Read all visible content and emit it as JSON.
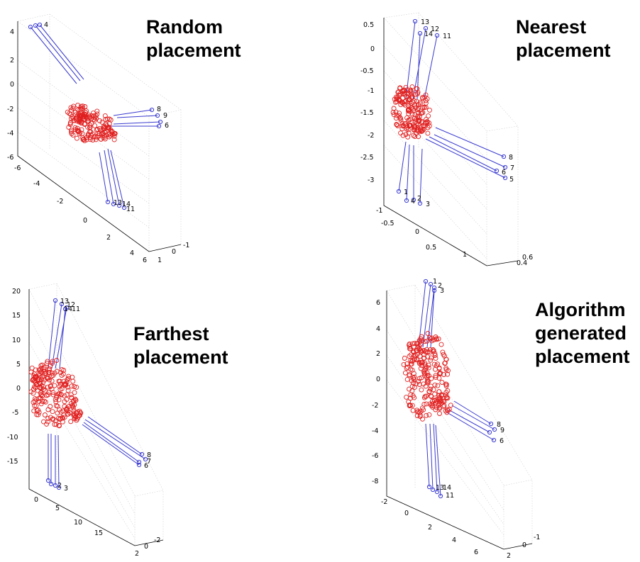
{
  "figure": {
    "panels": [
      {
        "title": [
          "Random",
          "placement"
        ],
        "yticks": [
          "4",
          "2",
          "0",
          "-2",
          "-4",
          "-6"
        ],
        "xticks": [
          "-6",
          "-4",
          "-2",
          "0",
          "2",
          "4",
          "6"
        ],
        "zticks": [
          "1",
          "0",
          "-1"
        ],
        "node_labels": [
          "4",
          "8",
          "9",
          "6",
          "13",
          "14",
          "11"
        ]
      },
      {
        "title": [
          "Nearest",
          "placement"
        ],
        "yticks": [
          "0.5",
          "0",
          "-0.5",
          "-1",
          "-1.5",
          "-2",
          "-2.5",
          "-3"
        ],
        "xticks": [
          "-1",
          "-0.5",
          "0",
          "0.5",
          "1"
        ],
        "zticks": [
          "0.6",
          "0.4"
        ],
        "node_labels": [
          "13",
          "12",
          "14",
          "11",
          "8",
          "7",
          "6",
          "5",
          "1",
          "4",
          "2",
          "3"
        ]
      },
      {
        "title": [
          "Farthest",
          "placement"
        ],
        "yticks": [
          "20",
          "15",
          "10",
          "5",
          "0",
          "-5",
          "-10",
          "-15"
        ],
        "xticks": [
          "0",
          "5",
          "10",
          "15"
        ],
        "zticks": [
          "2",
          "0",
          "-2"
        ],
        "node_labels": [
          "13",
          "12",
          "14",
          "11",
          "8",
          "7",
          "6",
          "2",
          "3"
        ]
      },
      {
        "title": [
          "Algorithm",
          "generated",
          "placement"
        ],
        "yticks": [
          "6",
          "4",
          "2",
          "0",
          "-2",
          "-4",
          "-6",
          "-8"
        ],
        "xticks": [
          "-2",
          "0",
          "2",
          "4",
          "6"
        ],
        "zticks": [
          "2",
          "0",
          "-1"
        ],
        "node_labels": [
          "1",
          "2",
          "3",
          "8",
          "9",
          "6",
          "13",
          "14",
          "11"
        ]
      }
    ]
  },
  "chart_data": [
    {
      "type": "scatter",
      "title": "Random placement",
      "ylim": [
        -6,
        4
      ],
      "xlim": [
        -6,
        6
      ],
      "zlim": [
        -1,
        1
      ],
      "series": [
        {
          "marker": "o",
          "color": "#e02020",
          "description_count": 200
        },
        {
          "marker": "o",
          "color": "#3a3ad0",
          "labels": [
            "4",
            "8",
            "9",
            "6",
            "13",
            "14",
            "11"
          ]
        }
      ]
    },
    {
      "type": "scatter",
      "title": "Nearest placement",
      "ylim": [
        -3,
        0.5
      ],
      "xlim": [
        -1,
        1
      ],
      "zlim": [
        0.4,
        0.6
      ],
      "series": [
        {
          "marker": "o",
          "color": "#e02020"
        },
        {
          "marker": "o",
          "color": "#3a3ad0",
          "labels": [
            "13",
            "12",
            "14",
            "11",
            "8",
            "7",
            "6",
            "5",
            "1",
            "4",
            "2",
            "3"
          ]
        }
      ]
    },
    {
      "type": "scatter",
      "title": "Farthest placement",
      "ylim": [
        -15,
        20
      ],
      "xlim": [
        0,
        15
      ],
      "zlim": [
        -2,
        2
      ],
      "series": [
        {
          "marker": "o",
          "color": "#e02020"
        },
        {
          "marker": "o",
          "color": "#3a3ad0",
          "labels": [
            "13",
            "12",
            "14",
            "11",
            "8",
            "7",
            "6",
            "2",
            "3"
          ]
        }
      ]
    },
    {
      "type": "scatter",
      "title": "Algorithm generated placement",
      "ylim": [
        -8,
        6
      ],
      "xlim": [
        -2,
        6
      ],
      "zlim": [
        -1,
        2
      ],
      "series": [
        {
          "marker": "o",
          "color": "#e02020"
        },
        {
          "marker": "o",
          "color": "#3a3ad0",
          "labels": [
            "1",
            "2",
            "3",
            "8",
            "9",
            "6",
            "13",
            "14",
            "11"
          ]
        }
      ]
    }
  ],
  "colors": {
    "sensor": "#e02020",
    "anchor": "#3a3ad0",
    "grid": "#cfcfcf"
  }
}
